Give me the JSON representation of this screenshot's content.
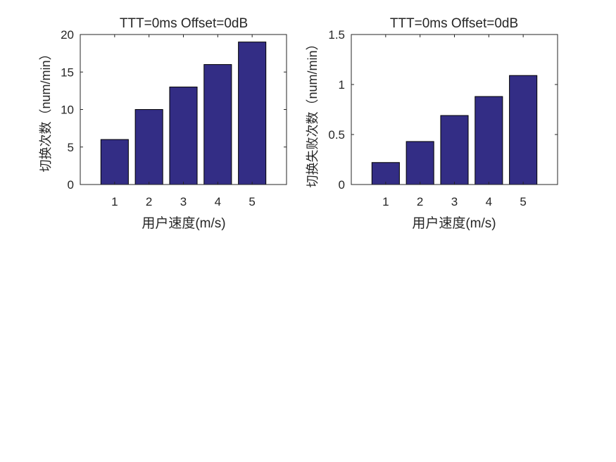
{
  "chart_data": [
    {
      "type": "bar",
      "title": "TTT=0ms Offset=0dB",
      "categories": [
        "1",
        "2",
        "3",
        "4",
        "5"
      ],
      "values": [
        6,
        10,
        13,
        16,
        19
      ],
      "xlabel": "用户速度(m/s)",
      "ylabel": "切换次数（num/min）",
      "ylim": [
        0,
        20
      ],
      "yticks": [
        "0",
        "5",
        "10",
        "15",
        "20"
      ],
      "bar_color": "#332d85",
      "grid": false
    },
    {
      "type": "bar",
      "title": "TTT=0ms Offset=0dB",
      "categories": [
        "1",
        "2",
        "3",
        "4",
        "5"
      ],
      "values": [
        0.22,
        0.43,
        0.69,
        0.88,
        1.09
      ],
      "xlabel": "用户速度(m/s)",
      "ylabel": "切换失败次数（num/min）",
      "ylim": [
        0,
        1.5
      ],
      "yticks": [
        "0",
        "0.5",
        "1",
        "1.5"
      ],
      "bar_color": "#332d85",
      "grid": false
    }
  ]
}
